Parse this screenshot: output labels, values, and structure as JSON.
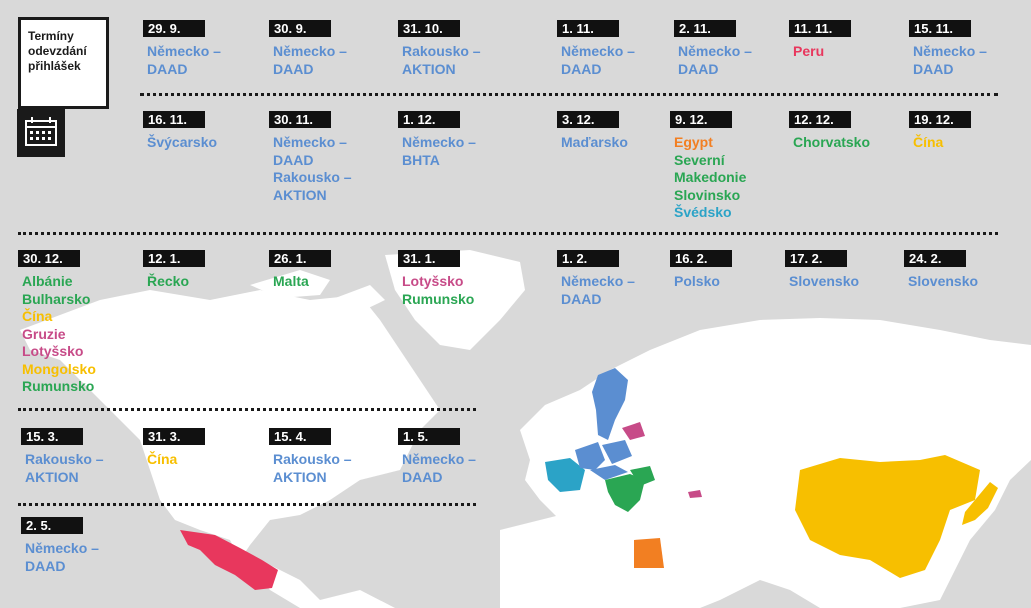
{
  "title": [
    "Termíny",
    "odevzdání",
    "přihlášek"
  ],
  "colors": {
    "blue": "#5b8ed1",
    "red": "#e8375d",
    "green": "#2aa653",
    "orange": "#f27f22",
    "yellow": "#f7bf00",
    "magenta": "#c74b88",
    "teal": "#2ba3c7",
    "land": "#ffffff",
    "sea": "#d9d9d9"
  },
  "entries": [
    {
      "date": "29. 9.",
      "items": [
        {
          "text": "Německo –",
          "c": "blue"
        },
        {
          "text": "DAAD",
          "c": "blue"
        }
      ]
    },
    {
      "date": "30. 9.",
      "items": [
        {
          "text": "Německo –",
          "c": "blue"
        },
        {
          "text": "DAAD",
          "c": "blue"
        }
      ]
    },
    {
      "date": "31. 10.",
      "items": [
        {
          "text": "Rakousko –",
          "c": "blue"
        },
        {
          "text": "AKTION",
          "c": "blue"
        }
      ]
    },
    {
      "date": "1. 11.",
      "items": [
        {
          "text": "Německo –",
          "c": "blue"
        },
        {
          "text": "DAAD",
          "c": "blue"
        }
      ]
    },
    {
      "date": "2. 11.",
      "items": [
        {
          "text": "Německo –",
          "c": "blue"
        },
        {
          "text": "DAAD",
          "c": "blue"
        }
      ]
    },
    {
      "date": "11. 11.",
      "items": [
        {
          "text": "Peru",
          "c": "red"
        }
      ]
    },
    {
      "date": "15. 11.",
      "items": [
        {
          "text": "Německo –",
          "c": "blue"
        },
        {
          "text": "DAAD",
          "c": "blue"
        }
      ]
    },
    {
      "date": "16. 11.",
      "items": [
        {
          "text": "Švýcarsko",
          "c": "blue"
        }
      ]
    },
    {
      "date": "30. 11.",
      "items": [
        {
          "text": "Německo –",
          "c": "blue"
        },
        {
          "text": "DAAD",
          "c": "blue"
        },
        {
          "text": "Rakousko –",
          "c": "blue"
        },
        {
          "text": "AKTION",
          "c": "blue"
        }
      ]
    },
    {
      "date": "1. 12.",
      "items": [
        {
          "text": "Německo –",
          "c": "blue"
        },
        {
          "text": "BHTA",
          "c": "blue"
        }
      ]
    },
    {
      "date": "3. 12.",
      "items": [
        {
          "text": "Maďarsko",
          "c": "blue"
        }
      ]
    },
    {
      "date": "9. 12.",
      "items": [
        {
          "text": "Egypt",
          "c": "orange"
        },
        {
          "text": "Severní",
          "c": "green"
        },
        {
          "text": "Makedonie",
          "c": "green"
        },
        {
          "text": "Slovinsko",
          "c": "green"
        },
        {
          "text": "Švédsko",
          "c": "teal"
        }
      ]
    },
    {
      "date": "12. 12.",
      "items": [
        {
          "text": "Chorvatsko",
          "c": "green"
        }
      ]
    },
    {
      "date": "19. 12.",
      "items": [
        {
          "text": "Čína",
          "c": "yellow"
        }
      ]
    },
    {
      "date": "30. 12.",
      "items": [
        {
          "text": "Albánie",
          "c": "green"
        },
        {
          "text": "Bulharsko",
          "c": "green"
        },
        {
          "text": "Čína",
          "c": "yellow"
        },
        {
          "text": "Gruzie",
          "c": "magenta"
        },
        {
          "text": "Lotyšsko",
          "c": "magenta"
        },
        {
          "text": "Mongolsko",
          "c": "yellow"
        },
        {
          "text": "Rumunsko",
          "c": "green"
        }
      ]
    },
    {
      "date": "12. 1.",
      "items": [
        {
          "text": "Řecko",
          "c": "green"
        }
      ]
    },
    {
      "date": "26. 1.",
      "items": [
        {
          "text": "Malta",
          "c": "green"
        }
      ]
    },
    {
      "date": "31. 1.",
      "items": [
        {
          "text": "Lotyšsko",
          "c": "magenta"
        },
        {
          "text": "Rumunsko",
          "c": "green"
        }
      ]
    },
    {
      "date": "1. 2.",
      "items": [
        {
          "text": "Německo –",
          "c": "blue"
        },
        {
          "text": "DAAD",
          "c": "blue"
        }
      ]
    },
    {
      "date": "16. 2.",
      "items": [
        {
          "text": "Polsko",
          "c": "blue"
        }
      ]
    },
    {
      "date": "17. 2.",
      "items": [
        {
          "text": "Slovensko",
          "c": "blue"
        }
      ]
    },
    {
      "date": "24. 2.",
      "items": [
        {
          "text": "Slovensko",
          "c": "blue"
        }
      ]
    },
    {
      "date": "15. 3.",
      "items": [
        {
          "text": "Rakousko –",
          "c": "blue"
        },
        {
          "text": "AKTION",
          "c": "blue"
        }
      ]
    },
    {
      "date": "31. 3.",
      "items": [
        {
          "text": "Čína",
          "c": "yellow"
        }
      ]
    },
    {
      "date": "15. 4.",
      "items": [
        {
          "text": "Rakousko –",
          "c": "blue"
        },
        {
          "text": "AKTION",
          "c": "blue"
        }
      ]
    },
    {
      "date": "1. 5.",
      "items": [
        {
          "text": "Německo –",
          "c": "blue"
        },
        {
          "text": "DAAD",
          "c": "blue"
        }
      ]
    },
    {
      "date": "2. 5.",
      "items": [
        {
          "text": "Německo –",
          "c": "blue"
        },
        {
          "text": "DAAD",
          "c": "blue"
        }
      ]
    }
  ]
}
